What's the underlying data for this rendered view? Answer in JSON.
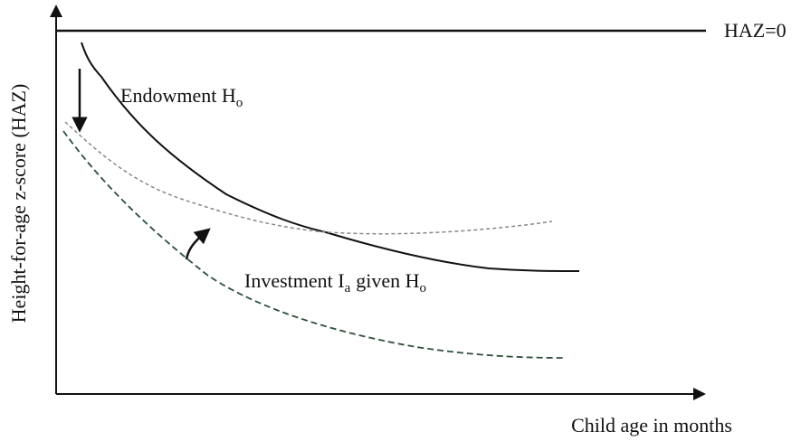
{
  "reference_line": {
    "label": "HAZ=0"
  },
  "axes": {
    "y_label": "Height-for-age z-score (HAZ)",
    "x_label": "Child age in months"
  },
  "curves": [
    {
      "label": "Endowment H",
      "subscript": "o"
    },
    {
      "label": "Investment I",
      "subscript": "a",
      "label_rest": "given H",
      "subscript_rest": "o"
    }
  ]
}
